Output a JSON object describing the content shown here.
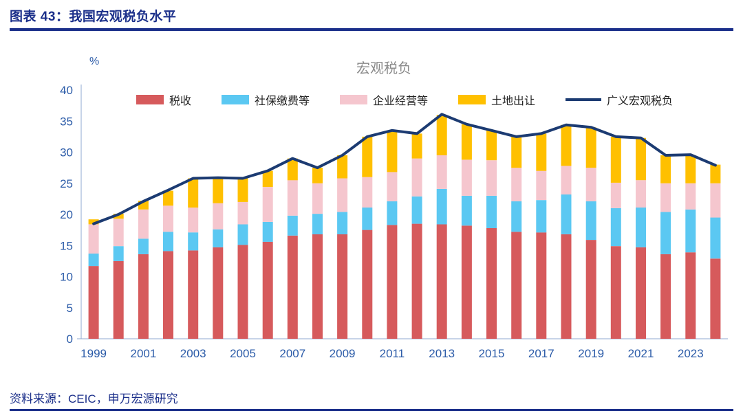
{
  "header": {
    "title": "图表 43：我国宏观税负水平"
  },
  "footer": {
    "source": "资料来源：CEIC，申万宏源研究"
  },
  "colors": {
    "accent": "#1B2F8A",
    "axis_text": "#2B5BA8",
    "chart_title_color": "#8A8A8A",
    "axis_line": "#8FAAD0",
    "tax": "#D65A5C",
    "social": "#5BC8F2",
    "business": "#F5C6CE",
    "land": "#FFC000",
    "line": "#1C3B72"
  },
  "chart_data": {
    "type": "stacked_bar_with_line",
    "title": "宏观税负",
    "ylabel": "%",
    "ylim": [
      0,
      40
    ],
    "yticks": [
      0,
      5,
      10,
      15,
      20,
      25,
      30,
      35,
      40
    ],
    "grid": false,
    "legend_position": "top",
    "categories": [
      1999,
      2000,
      2001,
      2002,
      2003,
      2004,
      2005,
      2006,
      2007,
      2008,
      2009,
      2010,
      2011,
      2012,
      2013,
      2014,
      2015,
      2016,
      2017,
      2018,
      2019,
      2020,
      2021,
      2022,
      2023,
      2024
    ],
    "xtick_labels": [
      "1999",
      "2001",
      "2003",
      "2005",
      "2007",
      "2009",
      "2011",
      "2013",
      "2015",
      "2017",
      "2019",
      "2021",
      "2023"
    ],
    "bar_series": [
      {
        "name": "税收",
        "color_key": "tax",
        "values": [
          11.7,
          12.5,
          13.6,
          14.1,
          14.2,
          14.7,
          15.1,
          15.6,
          16.6,
          16.8,
          16.8,
          17.5,
          18.3,
          18.5,
          18.4,
          18.2,
          17.8,
          17.2,
          17.1,
          16.8,
          15.9,
          14.9,
          14.7,
          13.6,
          13.9,
          12.9
        ]
      },
      {
        "name": "社保缴费等",
        "color_key": "social",
        "values": [
          2.0,
          2.4,
          2.5,
          3.1,
          2.9,
          2.9,
          3.3,
          3.2,
          3.2,
          3.3,
          3.6,
          3.6,
          3.8,
          4.4,
          5.7,
          4.8,
          5.2,
          4.9,
          5.2,
          6.4,
          6.2,
          6.1,
          6.4,
          6.8,
          6.9,
          6.6
        ]
      },
      {
        "name": "企业经营等",
        "color_key": "business",
        "values": [
          4.7,
          4.4,
          4.7,
          4.2,
          4.0,
          4.2,
          3.6,
          5.6,
          5.7,
          4.9,
          5.4,
          4.9,
          4.7,
          6.1,
          5.4,
          5.8,
          5.7,
          5.4,
          4.7,
          4.6,
          5.4,
          4.1,
          4.4,
          4.6,
          4.2,
          5.5
        ]
      },
      {
        "name": "土地出让",
        "color_key": "land",
        "values": [
          0.8,
          0.8,
          1.4,
          2.4,
          4.7,
          4.2,
          3.8,
          2.6,
          3.5,
          2.5,
          3.7,
          6.5,
          6.7,
          4.0,
          6.5,
          5.7,
          4.8,
          5.0,
          6.0,
          6.6,
          6.5,
          7.4,
          6.8,
          4.5,
          4.5,
          3.0
        ]
      }
    ],
    "line_series": {
      "name": "广义宏观税负",
      "color_key": "line",
      "values": [
        18.5,
        20.0,
        22.1,
        23.9,
        25.8,
        25.9,
        25.8,
        27.0,
        29.0,
        27.5,
        29.5,
        32.5,
        33.5,
        33.0,
        36.1,
        34.5,
        33.5,
        32.5,
        33.0,
        34.4,
        34.0,
        32.5,
        32.3,
        29.5,
        29.6,
        27.9
      ]
    }
  }
}
